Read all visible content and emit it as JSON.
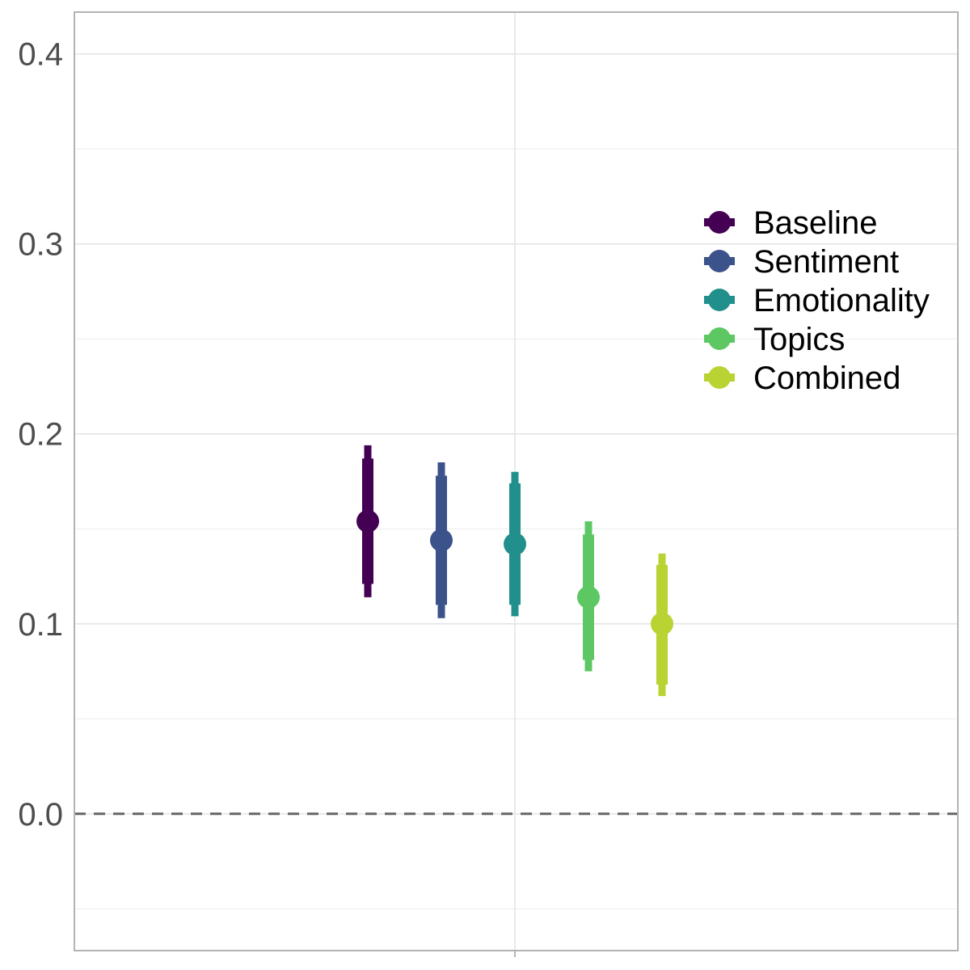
{
  "chart_data": {
    "type": "scatter",
    "title": "",
    "xlabel": "",
    "ylabel": "",
    "ylim": [
      -0.072,
      0.422
    ],
    "y_ticks": [
      {
        "value": 0.0,
        "label": "0.0"
      },
      {
        "value": 0.1,
        "label": "0.1"
      },
      {
        "value": 0.2,
        "label": "0.2"
      },
      {
        "value": 0.3,
        "label": "0.3"
      },
      {
        "value": 0.4,
        "label": "0.4"
      }
    ],
    "y_minor_ticks": [
      -0.05,
      0.05,
      0.15,
      0.25,
      0.35
    ],
    "reference_line": {
      "y": 0.0,
      "style": "dashed"
    },
    "grid": true,
    "legend_position": "right",
    "series": [
      {
        "name": "Baseline",
        "color": "#440154",
        "estimate": 0.154,
        "ci_inner": [
          0.121,
          0.187
        ],
        "ci_outer": [
          0.114,
          0.194
        ]
      },
      {
        "name": "Sentiment",
        "color": "#3B528B",
        "estimate": 0.144,
        "ci_inner": [
          0.11,
          0.178
        ],
        "ci_outer": [
          0.103,
          0.185
        ]
      },
      {
        "name": "Emotionality",
        "color": "#21908C",
        "estimate": 0.142,
        "ci_inner": [
          0.11,
          0.174
        ],
        "ci_outer": [
          0.104,
          0.18
        ]
      },
      {
        "name": "Topics",
        "color": "#5DC863",
        "estimate": 0.114,
        "ci_inner": [
          0.081,
          0.147
        ],
        "ci_outer": [
          0.075,
          0.154
        ]
      },
      {
        "name": "Combined",
        "color": "#B8D332",
        "estimate": 0.1,
        "ci_inner": [
          0.068,
          0.131
        ],
        "ci_outer": [
          0.062,
          0.137
        ]
      }
    ]
  }
}
